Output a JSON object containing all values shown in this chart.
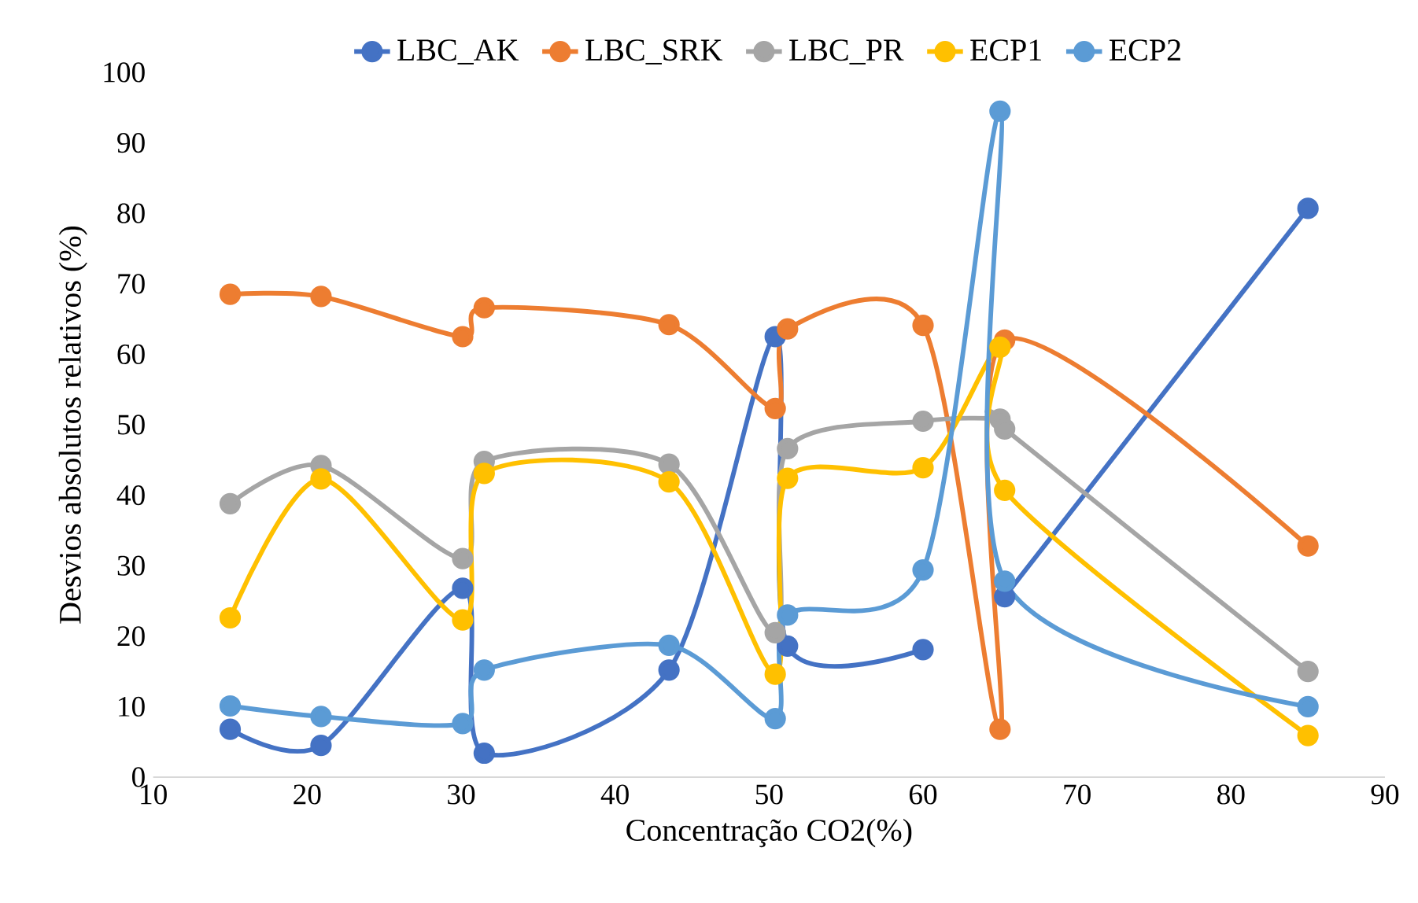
{
  "chart_data": {
    "type": "line",
    "xlabel": "Concentração CO2(%)",
    "ylabel": "Desvios absolutos relativos (%)",
    "x": [
      15,
      20.9,
      30.1,
      31.5,
      43.5,
      50.4,
      51.2,
      60,
      65,
      65.3,
      85
    ],
    "series": [
      {
        "name": "LBC_AK",
        "color": "#4472c4",
        "values": [
          6.8,
          4.5,
          26.8,
          3.4,
          15.2,
          62.5,
          18.6,
          18.1,
          null,
          25.6,
          80.7
        ]
      },
      {
        "name": "LBC_SRK",
        "color": "#ed7d31",
        "values": [
          68.5,
          68.2,
          62.5,
          66.6,
          64.2,
          52.3,
          63.6,
          64.1,
          6.8,
          62,
          32.8
        ]
      },
      {
        "name": "LBC_PR",
        "color": "#a5a5a5",
        "values": [
          38.8,
          44.2,
          31,
          44.8,
          44.4,
          20.5,
          46.6,
          50.5,
          50.8,
          49.4,
          15
        ]
      },
      {
        "name": "ECP1",
        "color": "#ffc000",
        "values": [
          22.6,
          42.3,
          22.3,
          43.1,
          41.9,
          14.6,
          42.4,
          43.9,
          61,
          40.7,
          5.9
        ]
      },
      {
        "name": "ECP2",
        "color": "#5b9bd5",
        "values": [
          10.1,
          8.6,
          7.6,
          15.2,
          18.7,
          8.3,
          23,
          29.4,
          94.5,
          27.8,
          10
        ]
      }
    ],
    "xlim": [
      10,
      90
    ],
    "ylim": [
      0,
      100
    ],
    "xticks": [
      10,
      20,
      30,
      40,
      50,
      60,
      70,
      80,
      90
    ],
    "yticks": [
      0,
      10,
      20,
      30,
      40,
      50,
      60,
      70,
      80,
      90,
      100
    ],
    "grid": false,
    "legend": "top",
    "marker": "circle",
    "line_style": "solid"
  }
}
